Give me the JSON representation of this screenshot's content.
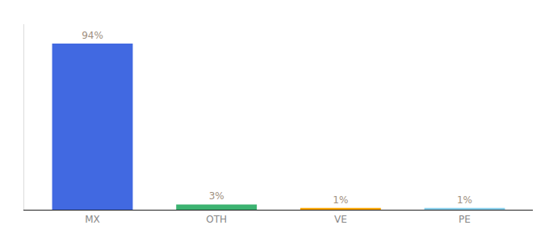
{
  "chart_data": {
    "type": "bar",
    "categories": [
      "MX",
      "OTH",
      "VE",
      "PE"
    ],
    "values": [
      94,
      3,
      1,
      1
    ],
    "value_labels": [
      "94%",
      "3%",
      "1%",
      "1%"
    ],
    "colors": [
      "#4169e1",
      "#3cb371",
      "#ffa500",
      "#87ceeb"
    ],
    "ylim": [
      0,
      105
    ],
    "data_labels": true,
    "tick_labels": "x",
    "grid": false
  }
}
